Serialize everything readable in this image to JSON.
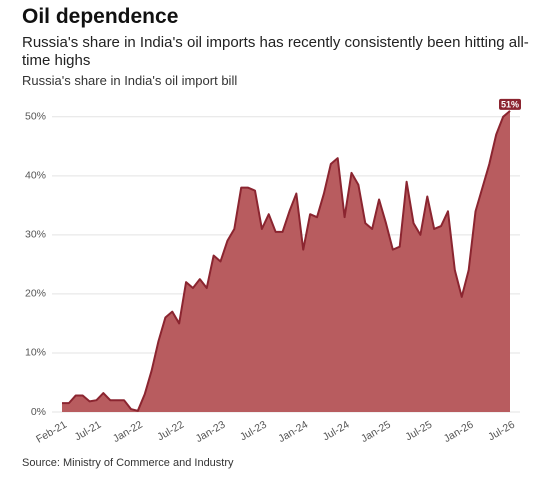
{
  "title": "Oil dependence",
  "subtitle": "Russia's share in India's oil imports has recently consistently been hitting all-time highs",
  "source": "Source: Ministry of Commerce and Industry",
  "chart_data": {
    "type": "area",
    "title": "Russia's share in India's oil import bill",
    "categories": [
      "Feb-21",
      null,
      null,
      null,
      null,
      "Jul-21",
      null,
      null,
      null,
      null,
      null,
      "Jan-22",
      null,
      null,
      null,
      null,
      null,
      "Jul-22",
      null,
      null,
      null,
      null,
      null,
      "Jan-23",
      null,
      null,
      null,
      null,
      null,
      "Jul-23",
      null,
      null,
      null,
      null,
      null,
      "Jan-24",
      null,
      null,
      null,
      null,
      null,
      "Jul-24",
      null,
      null,
      null,
      null,
      null,
      "Jan-25",
      null,
      null,
      null,
      null,
      null,
      "Jul-25",
      null,
      null,
      null,
      null,
      null,
      "Jan-26",
      null,
      null,
      null,
      null,
      null,
      "Jul-26"
    ],
    "values": [
      1.5,
      1.5,
      2.8,
      2.8,
      1.8,
      2,
      3.2,
      2,
      2,
      2,
      0.5,
      0.2,
      3,
      7,
      12,
      16,
      17,
      15,
      22,
      21,
      22.5,
      21,
      26.5,
      25.5,
      29,
      31,
      38,
      38,
      37.5,
      31,
      33.5,
      30.5,
      30.5,
      34,
      37,
      27.5,
      33.5,
      33,
      37,
      42,
      43,
      33,
      40.5,
      38.5,
      32,
      31,
      36,
      32,
      27.5,
      28,
      39,
      32,
      30,
      36.5,
      31,
      31.5,
      34,
      24,
      19.5,
      24,
      34,
      38,
      42,
      47,
      50,
      51
    ],
    "value_labels": [
      null,
      null,
      null,
      null,
      null,
      null,
      null,
      null,
      null,
      null,
      null,
      null,
      null,
      null,
      null,
      null,
      null,
      null,
      null,
      null,
      null,
      null,
      null,
      null,
      null,
      null,
      null,
      null,
      null,
      null,
      null,
      null,
      null,
      null,
      null,
      null,
      null,
      null,
      null,
      null,
      null,
      null,
      null,
      null,
      null,
      null,
      null,
      null,
      null,
      null,
      null,
      null,
      null,
      null,
      null,
      null,
      null,
      null,
      null,
      null,
      null,
      null,
      null,
      null,
      null,
      "51%"
    ],
    "color": "#b85c5f",
    "line_color": "#8b2530",
    "ylim": [
      0,
      52
    ],
    "yticks": [
      {
        "value": 0,
        "label": "0%"
      },
      {
        "value": 10,
        "label": "10%"
      },
      {
        "value": 20,
        "label": "20%"
      },
      {
        "value": 30,
        "label": "30%"
      },
      {
        "value": 40,
        "label": "40%"
      },
      {
        "value": 50,
        "label": "50%"
      }
    ],
    "grid": true
  }
}
